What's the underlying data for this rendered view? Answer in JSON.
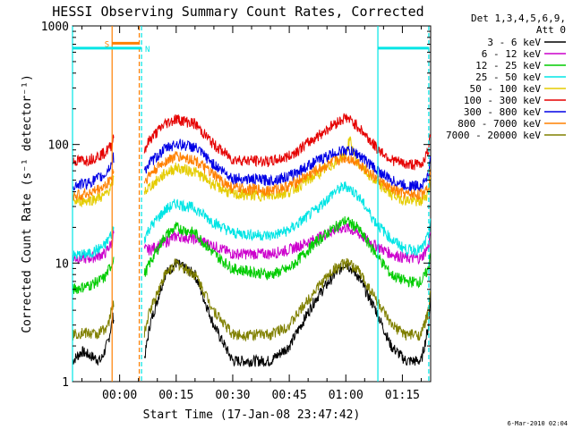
{
  "chart_data": {
    "type": "line",
    "title": "HESSI Observing Summary Count Rates, Corrected",
    "xlabel": "Start Time (17-Jan-08 23:47:42)",
    "ylabel": "Corrected Count Rate (s⁻¹ detector⁻¹)",
    "y_scale": "log",
    "ylim": [
      1,
      1000
    ],
    "xlim_minutes": [
      -12.5,
      82.5
    ],
    "x_ticks": [
      {
        "label": "00:00",
        "min": 0
      },
      {
        "label": "00:15",
        "min": 15
      },
      {
        "label": "00:30",
        "min": 30
      },
      {
        "label": "00:45",
        "min": 45
      },
      {
        "label": "01:00",
        "min": 60
      },
      {
        "label": "01:15",
        "min": 75
      }
    ],
    "y_ticks": [
      {
        "label": "1",
        "value": 1
      },
      {
        "label": "10",
        "value": 10
      },
      {
        "label": "100",
        "value": 100
      },
      {
        "label": "1000",
        "value": 1000
      }
    ],
    "legend_header": [
      "Det 1,3,4,5,6,9,",
      "Att 0"
    ],
    "legend_position": "right",
    "gaps_minutes": [
      [
        -1.5,
        6.5
      ]
    ],
    "series": [
      {
        "name": "3 - 6 keV",
        "color": "#000000",
        "points": [
          [
            -12.5,
            1.5
          ],
          [
            -10,
            1.8
          ],
          [
            -5,
            1.5
          ],
          [
            -3,
            2.2
          ],
          [
            -1.8,
            3.5
          ],
          [
            6.5,
            1.5
          ],
          [
            8,
            3
          ],
          [
            12,
            8
          ],
          [
            15,
            10
          ],
          [
            20,
            8
          ],
          [
            25,
            3
          ],
          [
            30,
            1.5
          ],
          [
            40,
            1.5
          ],
          [
            45,
            2
          ],
          [
            52,
            5
          ],
          [
            57,
            8
          ],
          [
            60,
            10
          ],
          [
            63,
            8
          ],
          [
            68,
            4
          ],
          [
            72,
            2
          ],
          [
            76,
            1.5
          ],
          [
            80,
            1.5
          ],
          [
            82,
            3
          ],
          [
            82.5,
            6
          ]
        ]
      },
      {
        "name": "6 - 12 keV",
        "color": "#cc00cc",
        "points": [
          [
            -12.5,
            11
          ],
          [
            -8,
            11
          ],
          [
            -4,
            12
          ],
          [
            -2,
            15
          ],
          [
            -1.8,
            18
          ],
          [
            6.5,
            13
          ],
          [
            8,
            13
          ],
          [
            12,
            15
          ],
          [
            15,
            17
          ],
          [
            20,
            16
          ],
          [
            25,
            14
          ],
          [
            30,
            12
          ],
          [
            40,
            12
          ],
          [
            45,
            13
          ],
          [
            52,
            16
          ],
          [
            57,
            19
          ],
          [
            60,
            20
          ],
          [
            63,
            18
          ],
          [
            68,
            14
          ],
          [
            72,
            12
          ],
          [
            76,
            11
          ],
          [
            80,
            11
          ],
          [
            82,
            14
          ],
          [
            82.5,
            20
          ]
        ]
      },
      {
        "name": "12 - 25 keV",
        "color": "#00cc00",
        "points": [
          [
            -12.5,
            6
          ],
          [
            -8,
            6.5
          ],
          [
            -4,
            7.5
          ],
          [
            -2,
            10
          ],
          [
            -1.8,
            11
          ],
          [
            6.5,
            8
          ],
          [
            8,
            10
          ],
          [
            12,
            17
          ],
          [
            15,
            20
          ],
          [
            20,
            18
          ],
          [
            25,
            12
          ],
          [
            30,
            9
          ],
          [
            40,
            8
          ],
          [
            45,
            9
          ],
          [
            52,
            15
          ],
          [
            57,
            20
          ],
          [
            60,
            23
          ],
          [
            63,
            20
          ],
          [
            68,
            12
          ],
          [
            72,
            8
          ],
          [
            76,
            7
          ],
          [
            80,
            7
          ],
          [
            82,
            9
          ],
          [
            82.5,
            14
          ]
        ]
      },
      {
        "name": "25 - 50 keV",
        "color": "#00e5e5",
        "points": [
          [
            -12.5,
            11.5
          ],
          [
            -8,
            12
          ],
          [
            -4,
            14
          ],
          [
            -2,
            18
          ],
          [
            -1.8,
            20
          ],
          [
            6.5,
            16
          ],
          [
            8,
            20
          ],
          [
            12,
            28
          ],
          [
            15,
            32
          ],
          [
            20,
            29
          ],
          [
            25,
            22
          ],
          [
            30,
            18
          ],
          [
            40,
            17
          ],
          [
            45,
            19
          ],
          [
            52,
            28
          ],
          [
            57,
            40
          ],
          [
            60,
            45
          ],
          [
            63,
            38
          ],
          [
            68,
            22
          ],
          [
            72,
            16
          ],
          [
            76,
            13
          ],
          [
            80,
            13
          ],
          [
            82,
            17
          ],
          [
            82.5,
            26
          ]
        ]
      },
      {
        "name": "50 - 100 keV",
        "color": "#e5cc00",
        "points": [
          [
            -12.5,
            33
          ],
          [
            -8,
            34
          ],
          [
            -4,
            37
          ],
          [
            -2,
            45
          ],
          [
            -1.8,
            50
          ],
          [
            6.5,
            40
          ],
          [
            8,
            44
          ],
          [
            12,
            57
          ],
          [
            15,
            64
          ],
          [
            20,
            59
          ],
          [
            25,
            46
          ],
          [
            30,
            38
          ],
          [
            40,
            37
          ],
          [
            45,
            40
          ],
          [
            52,
            55
          ],
          [
            57,
            70
          ],
          [
            60,
            85
          ],
          [
            61,
            110
          ],
          [
            63,
            70
          ],
          [
            68,
            48
          ],
          [
            72,
            38
          ],
          [
            76,
            34
          ],
          [
            80,
            33
          ],
          [
            82,
            40
          ],
          [
            82.5,
            55
          ]
        ]
      },
      {
        "name": "100 - 300 keV",
        "color": "#e50000",
        "points": [
          [
            -12.5,
            72
          ],
          [
            -8,
            75
          ],
          [
            -4,
            85
          ],
          [
            -2,
            100
          ],
          [
            -1.8,
            115
          ],
          [
            6.5,
            90
          ],
          [
            8,
            110
          ],
          [
            12,
            150
          ],
          [
            15,
            165
          ],
          [
            20,
            150
          ],
          [
            25,
            100
          ],
          [
            30,
            75
          ],
          [
            40,
            72
          ],
          [
            45,
            80
          ],
          [
            52,
            115
          ],
          [
            57,
            150
          ],
          [
            60,
            170
          ],
          [
            63,
            145
          ],
          [
            68,
            95
          ],
          [
            72,
            75
          ],
          [
            76,
            68
          ],
          [
            80,
            68
          ],
          [
            82,
            90
          ],
          [
            82.5,
            135
          ]
        ]
      },
      {
        "name": "300 - 800 keV",
        "color": "#0000e5",
        "points": [
          [
            -12.5,
            45
          ],
          [
            -8,
            48
          ],
          [
            -4,
            55
          ],
          [
            -2,
            70
          ],
          [
            -1.8,
            78
          ],
          [
            6.5,
            60
          ],
          [
            8,
            70
          ],
          [
            12,
            92
          ],
          [
            15,
            102
          ],
          [
            20,
            95
          ],
          [
            25,
            68
          ],
          [
            30,
            52
          ],
          [
            40,
            50
          ],
          [
            45,
            54
          ],
          [
            52,
            72
          ],
          [
            57,
            85
          ],
          [
            60,
            90
          ],
          [
            63,
            84
          ],
          [
            68,
            62
          ],
          [
            72,
            50
          ],
          [
            76,
            45
          ],
          [
            80,
            45
          ],
          [
            82,
            55
          ],
          [
            82.5,
            80
          ]
        ]
      },
      {
        "name": "800 - 7000 keV",
        "color": "#ff8000",
        "points": [
          [
            -12.5,
            37
          ],
          [
            -8,
            39
          ],
          [
            -4,
            44
          ],
          [
            -2,
            54
          ],
          [
            -1.8,
            60
          ],
          [
            6.5,
            48
          ],
          [
            8,
            56
          ],
          [
            12,
            72
          ],
          [
            15,
            80
          ],
          [
            20,
            74
          ],
          [
            25,
            55
          ],
          [
            30,
            43
          ],
          [
            40,
            41
          ],
          [
            45,
            45
          ],
          [
            52,
            60
          ],
          [
            57,
            72
          ],
          [
            60,
            78
          ],
          [
            63,
            72
          ],
          [
            68,
            52
          ],
          [
            72,
            42
          ],
          [
            76,
            38
          ],
          [
            80,
            38
          ],
          [
            82,
            46
          ],
          [
            82.5,
            65
          ]
        ]
      },
      {
        "name": "7000 - 20000 keV",
        "color": "#808000",
        "points": [
          [
            -12.5,
            2.5
          ],
          [
            -10,
            2.6
          ],
          [
            -6,
            2.5
          ],
          [
            -3,
            3
          ],
          [
            -1.8,
            4.5
          ],
          [
            6.5,
            2.5
          ],
          [
            8,
            4
          ],
          [
            12,
            8
          ],
          [
            15,
            10
          ],
          [
            20,
            8
          ],
          [
            25,
            4
          ],
          [
            30,
            2.5
          ],
          [
            40,
            2.5
          ],
          [
            45,
            3
          ],
          [
            52,
            6
          ],
          [
            57,
            9
          ],
          [
            60,
            10
          ],
          [
            63,
            9
          ],
          [
            68,
            5
          ],
          [
            72,
            3
          ],
          [
            76,
            2.5
          ],
          [
            80,
            2.5
          ],
          [
            82,
            4
          ],
          [
            82.5,
            7
          ]
        ]
      }
    ],
    "markers": {
      "vertical_lines": [
        {
          "x": -12.5,
          "color": "#00e5e5",
          "style": "solid"
        },
        {
          "x": -2,
          "color": "#ff8000",
          "style": "solid"
        },
        {
          "x": 5.2,
          "color": "#ff8000",
          "style": "dashed"
        },
        {
          "x": 5.8,
          "color": "#00e5e5",
          "style": "dashed"
        },
        {
          "x": 68.5,
          "color": "#00e5e5",
          "style": "solid"
        },
        {
          "x": 82,
          "color": "#00e5e5",
          "style": "dashed"
        }
      ],
      "bars": [
        {
          "label": "S",
          "color": "#ff8000",
          "x_start": -2,
          "x_end": 5.2,
          "y": 715
        },
        {
          "label": "N",
          "color": "#00e5e5",
          "x_start": -12.5,
          "x_end": 5.8,
          "y": 650
        },
        {
          "label": "",
          "color": "#00e5e5",
          "x_start": 68.5,
          "x_end": 82,
          "y": 650
        }
      ]
    }
  },
  "timestamp": "6-Mar-2010 02:04"
}
